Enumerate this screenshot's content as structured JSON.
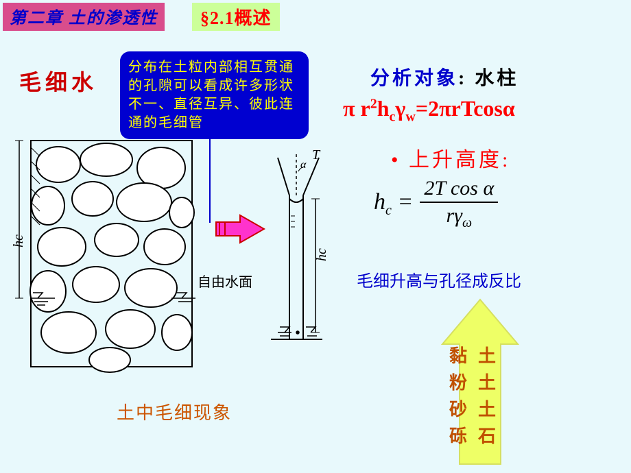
{
  "header": {
    "chapter": "第二章 土的渗透性",
    "section": "§2.1概述"
  },
  "title_left": "毛细水",
  "blue_box_text": "分布在土粒内部相互贯通的孔隙可以看成许多形状不一、直径互异、彼此连通的毛细管",
  "analysis": {
    "label_blue": "分析对象",
    "label_black": ": 水柱"
  },
  "equation1_html": "π r<sup>2</sup>h<sub>c</sub>γ<sub>w</sub>=2πrTcosα",
  "bullet": "上升高度:",
  "formula": {
    "lhs_html": "h<sub>c</sub> =",
    "num": "2T cos α",
    "den_html": "rγ<sub>ω</sub>"
  },
  "note": "毛细升高与孔径成反比",
  "caption": "土中毛细现象",
  "soils": [
    "黏土",
    "粉土",
    "砂土",
    "砾石"
  ],
  "diagram_labels": {
    "free_water": "自由水面",
    "hc": "hc",
    "T": "T",
    "alpha": "α"
  },
  "colors": {
    "background": "#e8f9fc",
    "chapter_bg": "#d94d8c",
    "chapter_text": "#0000cc",
    "section_bg": "#ccff99",
    "section_text": "#ff0000",
    "title_red": "#cc0000",
    "bluebox_bg": "#0000d0",
    "bluebox_text": "#ffff00",
    "eq_red": "#ff0000",
    "note_blue": "#0000cc",
    "caption_orange": "#cc5500",
    "soil_text": "#c05000",
    "arrow_fill": "#eeff66",
    "arrow_stroke": "#d6e060",
    "red_arrow_fill": "#ff33cc",
    "red_arrow_stroke": "#cc0000"
  }
}
